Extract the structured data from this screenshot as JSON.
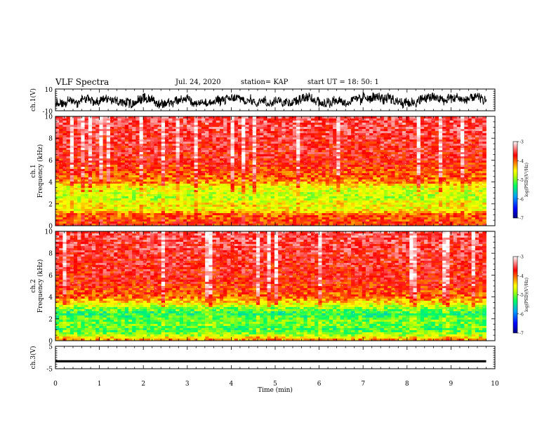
{
  "header": {
    "title": "VLF Spectra",
    "date": "Jul. 24, 2020",
    "station": "station= KAP",
    "start": "start UT =  18: 50: 1"
  },
  "colors": {
    "colormap": [
      "#000080",
      "#0000ff",
      "#00a0ff",
      "#00ff60",
      "#c0ff00",
      "#ffff00",
      "#ff8000",
      "#ff0000",
      "#ffffff"
    ]
  },
  "chart_data": [
    {
      "type": "line",
      "panel": "ch1-waveform",
      "ylabel": "ch.1(V)",
      "ylim": [
        -10,
        10
      ],
      "y_ticks": [
        "10",
        "-10"
      ],
      "x_range_min": [
        0,
        9.8
      ],
      "envelope": {
        "x": [
          0,
          1,
          2,
          3,
          4,
          5,
          6,
          7,
          8,
          9,
          9.8
        ],
        "min": [
          -8,
          -8,
          -9,
          -9,
          -8,
          -8,
          -9,
          -8,
          -9,
          -8,
          -8
        ],
        "max": [
          6,
          7,
          7,
          6,
          7,
          8,
          8,
          9,
          8,
          8,
          7
        ]
      }
    },
    {
      "type": "heatmap",
      "panel": "ch1-spectrogram",
      "ylabel": "ch.1 Frequency (kHz)",
      "ylim": [
        0,
        10
      ],
      "y_ticks": [
        "0",
        "2",
        "4",
        "6",
        "8",
        "10"
      ],
      "x_range_min": [
        0,
        9.8
      ],
      "colorbar": {
        "label": "log(PSD)(V²/Hz)",
        "range": [
          -7,
          -3
        ],
        "ticks": [
          "-3",
          "-4",
          "-5",
          "-6",
          "-7"
        ]
      },
      "freq_profile_kHz": [
        0,
        1,
        1.5,
        2,
        2.5,
        3,
        3.5,
        4,
        5,
        6,
        8,
        10
      ],
      "log_psd_profile": [
        -3.8,
        -4.0,
        -4.6,
        -4.5,
        -4.8,
        -4.7,
        -4.6,
        -4.1,
        -3.9,
        -3.7,
        -3.6,
        -3.5
      ]
    },
    {
      "type": "heatmap",
      "panel": "ch2-spectrogram",
      "ylabel": "ch.2 Frequency (kHz)",
      "ylim": [
        0,
        10
      ],
      "y_ticks": [
        "0",
        "2",
        "4",
        "6",
        "8",
        "10"
      ],
      "x_range_min": [
        0,
        9.8
      ],
      "colorbar": {
        "label": "log(PSD)(V²/Hz)",
        "range": [
          -7,
          -3
        ],
        "ticks": [
          "-3",
          "-4",
          "-5",
          "-6",
          "-7"
        ]
      },
      "freq_profile_kHz": [
        0,
        0.5,
        1,
        1.5,
        2,
        2.5,
        3,
        3.5,
        4,
        5,
        6,
        8,
        10
      ],
      "log_psd_profile": [
        -4.0,
        -4.8,
        -5.2,
        -5.0,
        -5.1,
        -5.3,
        -4.9,
        -4.4,
        -4.0,
        -3.8,
        -3.7,
        -3.6,
        -3.5
      ]
    },
    {
      "type": "line",
      "panel": "ch3-waveform",
      "ylabel": "ch.3(V)",
      "xlabel": "Time (min)",
      "ylim": [
        -5,
        5
      ],
      "y_ticks": [
        "5",
        "-5"
      ],
      "x_ticks": [
        "0",
        "1",
        "2",
        "3",
        "4",
        "5",
        "6",
        "7",
        "8",
        "9",
        "10"
      ],
      "xlim": [
        0,
        10
      ],
      "x_range_min": [
        0,
        9.8
      ],
      "envelope": {
        "x": [
          0,
          9.8
        ],
        "min": [
          -2.2,
          -2.2
        ],
        "max": [
          -1.2,
          -1.2
        ]
      }
    }
  ]
}
